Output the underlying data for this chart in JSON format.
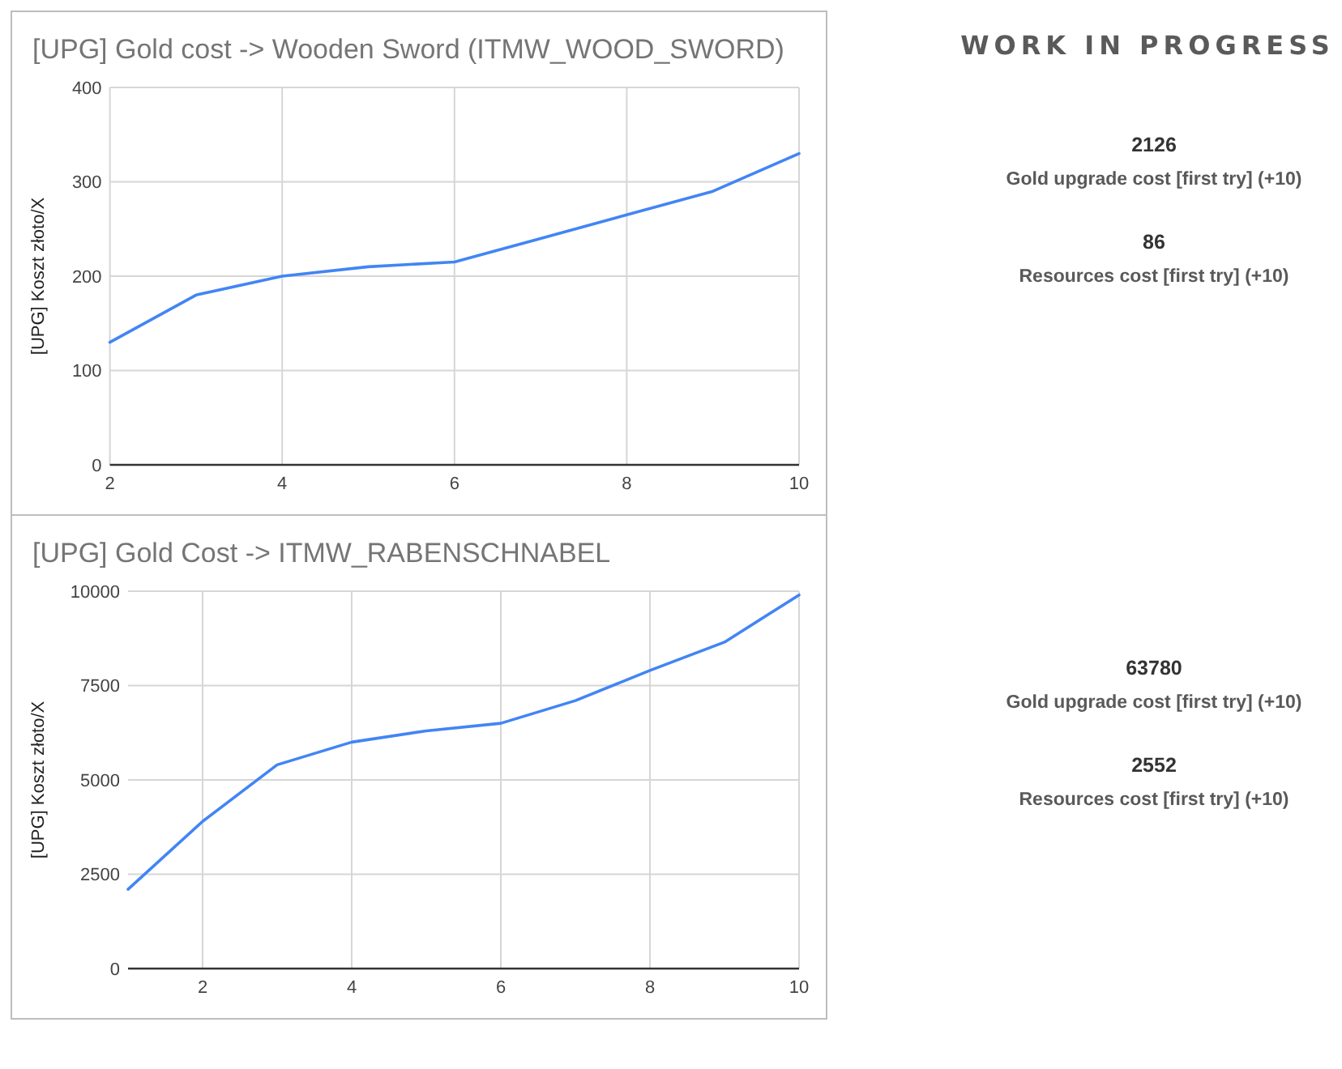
{
  "chart_data": [
    {
      "type": "line",
      "title": "[UPG] Gold cost -> Wooden Sword (ITMW_WOOD_SWORD)",
      "ylabel": "[UPG] Koszt złoto/X",
      "x": [
        2,
        3,
        4,
        5,
        6,
        7,
        8,
        9,
        10
      ],
      "values": [
        130,
        180,
        200,
        210,
        215,
        240,
        265,
        290,
        330
      ],
      "color": "#4285f4",
      "xlim": [
        2,
        10
      ],
      "xticks": [
        2,
        4,
        6,
        8,
        10
      ],
      "ylim": [
        0,
        400
      ],
      "yticks": [
        0,
        100,
        200,
        300,
        400
      ],
      "grid": true
    },
    {
      "type": "other",
      "title": "WORK IN PROGRESS",
      "annotations": [
        "2126",
        "Gold upgrade cost [first try] (+10)",
        "86",
        "Resources cost [first try] (+10)"
      ]
    },
    {
      "type": "line",
      "title": "[UPG] Gold Cost -> ITMW_RABENSCHNABEL",
      "ylabel": "[UPG] Koszt złoto/X",
      "x": [
        1,
        2,
        3,
        4,
        5,
        6,
        7,
        8,
        9,
        10
      ],
      "values": [
        2100,
        3900,
        5400,
        6000,
        6300,
        6500,
        7100,
        7900,
        8650,
        9900
      ],
      "color": "#4285f4",
      "xlim": [
        1,
        10
      ],
      "xticks": [
        2,
        4,
        6,
        8,
        10
      ],
      "ylim": [
        0,
        10000
      ],
      "yticks": [
        0,
        2500,
        5000,
        7500,
        10000
      ],
      "grid": true
    },
    {
      "type": "other",
      "annotations": [
        "63780",
        "Gold upgrade cost [first try] (+10)",
        "2552",
        "Resources cost [first try] (+10)"
      ]
    }
  ]
}
